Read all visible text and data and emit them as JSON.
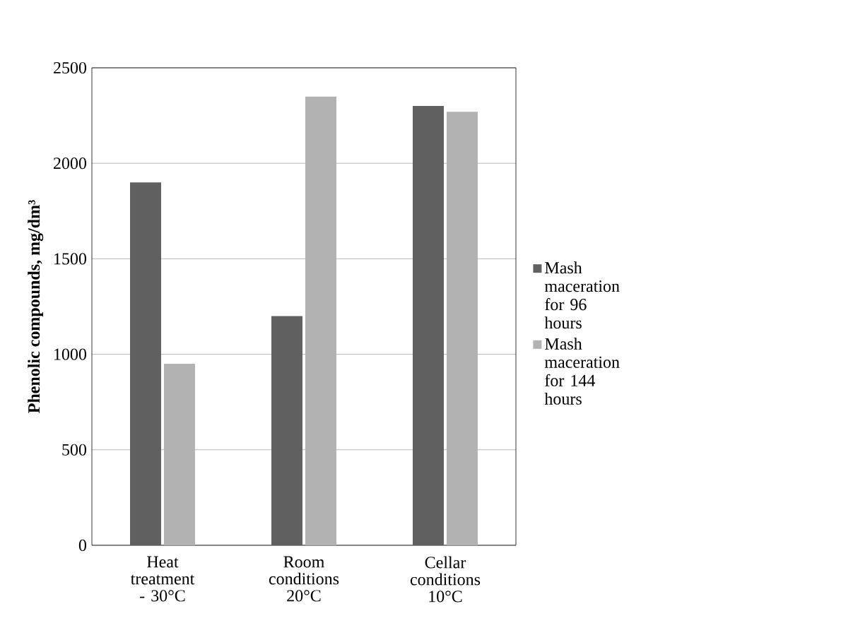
{
  "chart_data": {
    "type": "bar",
    "ylabel": "Phenolic compounds, mg/dm³",
    "categories": [
      "Heat treatment - 30°C",
      "Room conditions 20°C",
      "Cellar conditions 10°C"
    ],
    "series": [
      {
        "name": "Mash maceration for 96 hours",
        "color": "#606060",
        "values": [
          1900,
          1200,
          2300
        ]
      },
      {
        "name": "Mash maceration for 144 hours",
        "color": "#b2b2b2",
        "values": [
          950,
          2350,
          2270
        ]
      }
    ],
    "ylim": [
      0,
      2500
    ],
    "yticks": [
      0,
      500,
      1000,
      1500,
      2000,
      2500
    ],
    "grid": "y",
    "legend": "right"
  }
}
